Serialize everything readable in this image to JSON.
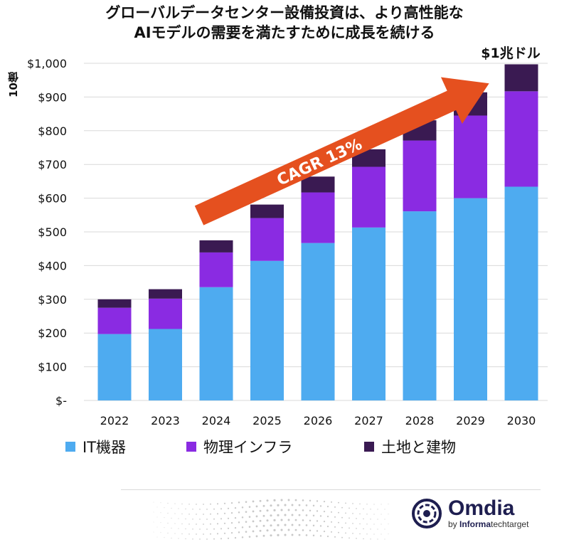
{
  "title_line1": "グローバルデータセンター設備投資は、より高性能な",
  "title_line2": "AIモデルの需要を満たすために成長を続ける",
  "unit_label": "10億",
  "cagr_label": "CAGR 13%",
  "peak_label": "$1兆ドル",
  "colors": {
    "it": "#4eabf0",
    "phys": "#8a2be2",
    "land": "#3a1a52",
    "arrow": "#e5501f",
    "grid": "#d9d9d9"
  },
  "logo": {
    "name": "Omdia",
    "by": "by ",
    "informa": "Informa",
    "techtarget": "techtarget"
  },
  "chart_data": {
    "type": "bar",
    "stacked": true,
    "categories": [
      "2022",
      "2023",
      "2024",
      "2025",
      "2026",
      "2027",
      "2028",
      "2029",
      "2030"
    ],
    "series": [
      {
        "name": "IT機器",
        "values": [
          197,
          212,
          336,
          414,
          467,
          513,
          561,
          600,
          634
        ]
      },
      {
        "name": "物理インフラ",
        "values": [
          78,
          90,
          103,
          127,
          150,
          180,
          210,
          245,
          283
        ]
      },
      {
        "name": "土地と建物",
        "values": [
          25,
          28,
          36,
          40,
          47,
          52,
          60,
          69,
          80
        ]
      }
    ],
    "ylim": [
      0,
      1000
    ],
    "yticks": [
      0,
      100,
      200,
      300,
      400,
      500,
      600,
      700,
      800,
      900,
      1000
    ],
    "ytick_labels": [
      "$-",
      "$100",
      "$200",
      "$300",
      "$400",
      "$500",
      "$600",
      "$700",
      "$800",
      "$900",
      "$1,000"
    ],
    "grid": true,
    "legend": "bottom"
  }
}
